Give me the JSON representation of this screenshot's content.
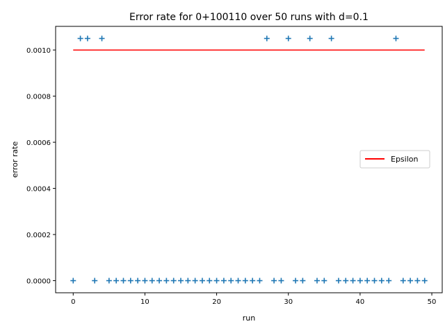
{
  "chart_data": {
    "type": "scatter",
    "title": "Error rate for 0+100110 over 50 runs with d=0.1",
    "xlabel": "run",
    "ylabel": "error rate",
    "xlim": [
      -2.45,
      51.45
    ],
    "ylim": [
      -5.25e-05,
      0.0011025
    ],
    "x_ticks": [
      0,
      10,
      20,
      30,
      40,
      50
    ],
    "x_tick_labels": [
      "0",
      "10",
      "20",
      "30",
      "40",
      "50"
    ],
    "y_ticks": [
      0,
      0.0002,
      0.0004,
      0.0006,
      0.0008,
      0.001
    ],
    "y_tick_labels": [
      "0.0000",
      "0.0002",
      "0.0004",
      "0.0006",
      "0.0008",
      "0.0010"
    ],
    "grid": false,
    "legend_position": "center-right",
    "series": [
      {
        "kind": "scatter",
        "marker": "+",
        "color": "#1f77b4",
        "x": [
          0,
          1,
          2,
          3,
          4,
          5,
          6,
          7,
          8,
          9,
          10,
          11,
          12,
          13,
          14,
          15,
          16,
          17,
          18,
          19,
          20,
          21,
          22,
          23,
          24,
          25,
          26,
          27,
          28,
          29,
          30,
          31,
          32,
          33,
          34,
          35,
          36,
          37,
          38,
          39,
          40,
          41,
          42,
          43,
          44,
          45,
          46,
          47,
          48,
          49
        ],
        "values": [
          0,
          0.00105,
          0.00105,
          0,
          0.00105,
          0,
          0,
          0,
          0,
          0,
          0,
          0,
          0,
          0,
          0,
          0,
          0,
          0,
          0,
          0,
          0,
          0,
          0,
          0,
          0,
          0,
          0,
          0.00105,
          0,
          0,
          0.00105,
          0,
          0,
          0.00105,
          0,
          0,
          0.00105,
          0,
          0,
          0,
          0,
          0,
          0,
          0,
          0,
          0.00105,
          0,
          0,
          0,
          0
        ]
      },
      {
        "kind": "line",
        "name": "Epsilon",
        "color": "#ff0000",
        "x": [
          0,
          49
        ],
        "values": [
          0.001,
          0.001
        ]
      }
    ]
  }
}
